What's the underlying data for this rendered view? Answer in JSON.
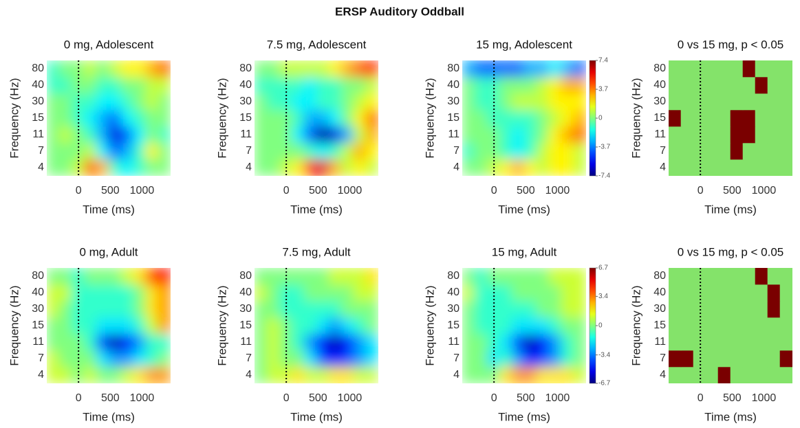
{
  "title": "ERSP Auditory Oddball",
  "chart_data": [
    {
      "type": "heatmap",
      "title": "0 mg, Adolescent",
      "xlabel": "Time (ms)",
      "ylabel": "Frequency (Hz)",
      "xlim": [
        -500,
        1450
      ],
      "xticks": [
        0,
        500,
        1000
      ],
      "y_categories": [
        "4",
        "7",
        "11",
        "15",
        "30",
        "40",
        "80"
      ],
      "event_time": 0,
      "colormap": "jet",
      "clim": [
        -7.4,
        7.4
      ],
      "z": [
        [
          0,
          0,
          1,
          4,
          3,
          -1,
          -2,
          -1,
          0,
          0
        ],
        [
          0,
          0,
          0,
          1,
          -2,
          -4,
          -3,
          -1,
          2,
          0
        ],
        [
          0,
          1,
          0,
          -1,
          -3,
          -6,
          -4,
          -2,
          0,
          -1
        ],
        [
          0,
          0,
          -1,
          -2,
          -3,
          -4,
          -2,
          -1,
          0,
          0
        ],
        [
          0,
          0,
          -1,
          -1,
          -2,
          -2,
          -1,
          0,
          1,
          0
        ],
        [
          -1,
          -1,
          0,
          0,
          -1,
          -1,
          0,
          0,
          1,
          1
        ],
        [
          -1,
          0,
          0,
          1,
          0,
          1,
          2,
          2,
          3,
          4
        ]
      ]
    },
    {
      "type": "heatmap",
      "title": "7.5 mg, Adolescent",
      "xlabel": "Time (ms)",
      "ylabel": "Frequency (Hz)",
      "xlim": [
        -500,
        1450
      ],
      "xticks": [
        0,
        500,
        1000
      ],
      "y_categories": [
        "4",
        "7",
        "11",
        "15",
        "30",
        "40",
        "80"
      ],
      "event_time": 0,
      "colormap": "jet",
      "clim": [
        -7.4,
        7.4
      ],
      "z": [
        [
          0,
          0,
          1,
          2,
          5,
          6,
          3,
          1,
          2,
          1
        ],
        [
          0,
          0,
          0,
          0,
          -1,
          -2,
          -1,
          1,
          3,
          2
        ],
        [
          0,
          0,
          0,
          -2,
          -4,
          -7,
          -6,
          -3,
          1,
          3
        ],
        [
          0,
          0,
          0,
          -1,
          -3,
          -3,
          -2,
          0,
          2,
          4
        ],
        [
          0,
          -1,
          -1,
          -2,
          -2,
          -1,
          -1,
          0,
          1,
          2
        ],
        [
          -1,
          -1,
          -1,
          -1,
          -2,
          -1,
          -1,
          0,
          0,
          1
        ],
        [
          0,
          0,
          1,
          1,
          1,
          1,
          2,
          3,
          4,
          5
        ]
      ]
    },
    {
      "type": "heatmap",
      "title": "15 mg, Adolescent",
      "xlabel": "Time (ms)",
      "ylabel": "Frequency (Hz)",
      "xlim": [
        -500,
        1450
      ],
      "xticks": [
        0,
        500,
        1000
      ],
      "y_categories": [
        "4",
        "7",
        "11",
        "15",
        "30",
        "40",
        "80"
      ],
      "event_time": 0,
      "colormap": "jet",
      "clim": [
        -7.4,
        7.4
      ],
      "colorbar": {
        "ticks": [
          7.4,
          3.7,
          0,
          -3.7,
          -7.4
        ]
      },
      "z": [
        [
          0,
          0,
          1,
          2,
          3,
          2,
          1,
          2,
          2,
          1
        ],
        [
          -1,
          0,
          0,
          -1,
          -2,
          -1,
          1,
          2,
          2,
          1
        ],
        [
          0,
          0,
          0,
          -1,
          -2,
          -1,
          0,
          2,
          3,
          4
        ],
        [
          0,
          0,
          -1,
          -1,
          -1,
          -1,
          0,
          1,
          2,
          3
        ],
        [
          0,
          -1,
          -1,
          0,
          1,
          1,
          1,
          2,
          2,
          2
        ],
        [
          0,
          -1,
          -1,
          0,
          0,
          0,
          1,
          2,
          3,
          3
        ],
        [
          -3,
          -4,
          -4,
          -4,
          -4,
          -3,
          -3,
          -2,
          -3,
          -4
        ]
      ]
    },
    {
      "type": "significance",
      "title": "0 vs 15 mg, p < 0.05",
      "xlabel": "Time (ms)",
      "ylabel": "Frequency (Hz)",
      "xlim": [
        -500,
        1450
      ],
      "xticks": [
        0,
        500,
        1000
      ],
      "y_categories": [
        "4",
        "7",
        "11",
        "15",
        "30",
        "40",
        "80"
      ],
      "event_time": 0,
      "colors": [
        "#84e36a",
        "#7a0000"
      ],
      "z": [
        [
          0,
          0,
          0,
          0,
          0,
          0,
          0,
          0,
          0,
          0
        ],
        [
          0,
          0,
          0,
          0,
          0,
          1,
          0,
          0,
          0,
          0
        ],
        [
          0,
          0,
          0,
          0,
          0,
          1,
          1,
          0,
          0,
          0
        ],
        [
          1,
          0,
          0,
          0,
          0,
          1,
          1,
          0,
          0,
          0
        ],
        [
          0,
          0,
          0,
          0,
          0,
          0,
          0,
          0,
          0,
          0
        ],
        [
          0,
          0,
          0,
          0,
          0,
          0,
          0,
          1,
          0,
          0
        ],
        [
          0,
          0,
          0,
          0,
          0,
          0,
          1,
          0,
          0,
          0
        ]
      ]
    },
    {
      "type": "heatmap",
      "title": "0 mg, Adult",
      "xlabel": "Time (ms)",
      "ylabel": "Frequency (Hz)",
      "xlim": [
        -500,
        1450
      ],
      "xticks": [
        0,
        500,
        1000
      ],
      "y_categories": [
        "4",
        "7",
        "11",
        "15",
        "30",
        "40",
        "80"
      ],
      "event_time": 0,
      "colormap": "jet",
      "clim": [
        -6.7,
        6.7
      ],
      "z": [
        [
          1,
          1,
          0,
          1,
          0,
          0,
          1,
          2,
          3,
          3
        ],
        [
          1,
          0,
          0,
          0,
          -2,
          -3,
          -3,
          -2,
          -1,
          0
        ],
        [
          0,
          0,
          0,
          -1,
          -4,
          -6,
          -5,
          -3,
          -1,
          -1
        ],
        [
          0,
          0,
          -1,
          -1,
          -2,
          -2,
          -2,
          -1,
          1,
          3
        ],
        [
          1,
          0,
          -1,
          -1,
          -1,
          -1,
          -1,
          0,
          2,
          3
        ],
        [
          1,
          1,
          -1,
          -1,
          -1,
          -1,
          -1,
          0,
          2,
          3
        ],
        [
          0,
          0,
          -1,
          0,
          0,
          0,
          1,
          2,
          4,
          5
        ]
      ]
    },
    {
      "type": "heatmap",
      "title": "7.5 mg, Adult",
      "xlabel": "Time (ms)",
      "ylabel": "Frequency (Hz)",
      "xlim": [
        -500,
        1450
      ],
      "xticks": [
        0,
        500,
        1000
      ],
      "y_categories": [
        "4",
        "7",
        "11",
        "15",
        "30",
        "40",
        "80"
      ],
      "event_time": 0,
      "colormap": "jet",
      "clim": [
        -6.7,
        6.7
      ],
      "z": [
        [
          0,
          1,
          1,
          2,
          1,
          1,
          2,
          2,
          1,
          1
        ],
        [
          0,
          1,
          0,
          0,
          -2,
          -4,
          -5,
          -4,
          -3,
          -2
        ],
        [
          0,
          1,
          0,
          -1,
          -3,
          -5,
          -6,
          -5,
          -3,
          -2
        ],
        [
          0,
          1,
          0,
          -1,
          -1,
          -2,
          -3,
          -2,
          -1,
          0
        ],
        [
          0,
          0,
          -1,
          -1,
          -1,
          -1,
          -1,
          0,
          0,
          0
        ],
        [
          1,
          0,
          -1,
          -1,
          0,
          0,
          0,
          0,
          1,
          1
        ],
        [
          0,
          0,
          0,
          0,
          0,
          0,
          1,
          1,
          1,
          2
        ]
      ]
    },
    {
      "type": "heatmap",
      "title": "15 mg, Adult",
      "xlabel": "Time (ms)",
      "ylabel": "Frequency (Hz)",
      "xlim": [
        -500,
        1450
      ],
      "xticks": [
        0,
        500,
        1000
      ],
      "y_categories": [
        "4",
        "7",
        "11",
        "15",
        "30",
        "40",
        "80"
      ],
      "event_time": 0,
      "colormap": "jet",
      "clim": [
        -6.7,
        6.7
      ],
      "colorbar": {
        "ticks": [
          6.7,
          3.4,
          0,
          -3.4,
          -6.7
        ]
      },
      "z": [
        [
          0,
          0,
          0,
          2,
          3,
          3,
          2,
          2,
          2,
          1
        ],
        [
          0,
          0,
          -2,
          -1,
          -3,
          -5,
          -4,
          -3,
          -1,
          0
        ],
        [
          0,
          0,
          -1,
          -2,
          -4,
          -6,
          -5,
          -3,
          -1,
          0
        ],
        [
          0,
          -1,
          -1,
          -1,
          -2,
          -2,
          -2,
          -1,
          0,
          0
        ],
        [
          0,
          -1,
          -1,
          -1,
          -1,
          -1,
          0,
          0,
          1,
          1
        ],
        [
          1,
          -1,
          -1,
          -1,
          0,
          0,
          0,
          0,
          1,
          1
        ],
        [
          0,
          -1,
          0,
          0,
          0,
          0,
          0,
          1,
          1,
          1
        ]
      ]
    },
    {
      "type": "significance",
      "title": "0 vs 15 mg, p < 0.05",
      "xlabel": "Time (ms)",
      "ylabel": "Frequency (Hz)",
      "xlim": [
        -500,
        1450
      ],
      "xticks": [
        0,
        500,
        1000
      ],
      "y_categories": [
        "4",
        "7",
        "11",
        "15",
        "30",
        "40",
        "80"
      ],
      "event_time": 0,
      "colors": [
        "#84e36a",
        "#7a0000"
      ],
      "z": [
        [
          0,
          0,
          0,
          0,
          1,
          0,
          0,
          0,
          0,
          0
        ],
        [
          1,
          1,
          0,
          0,
          0,
          0,
          0,
          0,
          0,
          1
        ],
        [
          0,
          0,
          0,
          0,
          0,
          0,
          0,
          0,
          0,
          0
        ],
        [
          0,
          0,
          0,
          0,
          0,
          0,
          0,
          0,
          0,
          0
        ],
        [
          0,
          0,
          0,
          0,
          0,
          0,
          0,
          0,
          1,
          0
        ],
        [
          0,
          0,
          0,
          0,
          0,
          0,
          0,
          0,
          1,
          0
        ],
        [
          0,
          0,
          0,
          0,
          0,
          0,
          0,
          1,
          0,
          0
        ]
      ]
    }
  ]
}
